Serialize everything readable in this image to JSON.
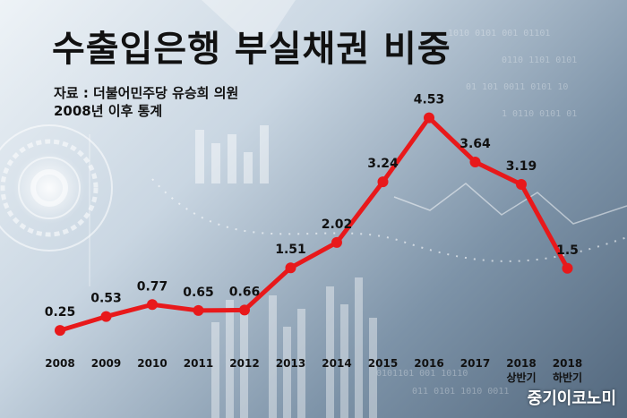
{
  "title": "수출입은행 부실채권 비중",
  "source": "자료 : 더불어민주당 유승희 의원",
  "period": "2008년 이후 통계",
  "brand": "중기이코노미",
  "colors": {
    "line": "#e8191b",
    "text": "#111111"
  },
  "chart_data": {
    "type": "line",
    "categories": [
      "2008",
      "2009",
      "2010",
      "2011",
      "2012",
      "2013",
      "2014",
      "2015",
      "2016",
      "2017",
      "2018 상반기",
      "2018 하반기"
    ],
    "x_labels": [
      [
        "2008"
      ],
      [
        "2009"
      ],
      [
        "2010"
      ],
      [
        "2011"
      ],
      [
        "2012"
      ],
      [
        "2013"
      ],
      [
        "2014"
      ],
      [
        "2015"
      ],
      [
        "2016"
      ],
      [
        "2017"
      ],
      [
        "2018",
        "상반기"
      ],
      [
        "2018",
        "하반기"
      ]
    ],
    "values": [
      0.25,
      0.53,
      0.77,
      0.65,
      0.66,
      1.51,
      2.02,
      3.24,
      4.53,
      3.64,
      3.19,
      1.5
    ],
    "value_labels": [
      "0.25",
      "0.53",
      "0.77",
      "0.65",
      "0.66",
      "1.51",
      "2.02",
      "3.24",
      "4.53",
      "3.64",
      "3.19",
      "1.5"
    ],
    "ylim": [
      0,
      5
    ],
    "grid": false
  }
}
